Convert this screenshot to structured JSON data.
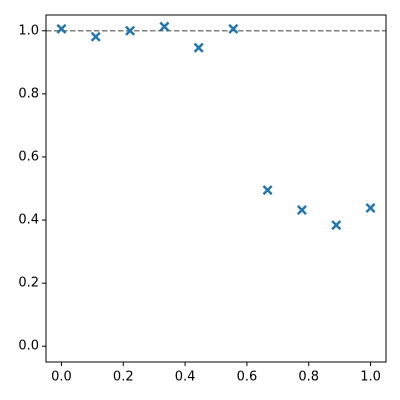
{
  "chart_data": {
    "type": "scatter",
    "x": [
      0.0,
      0.111,
      0.222,
      0.333,
      0.444,
      0.556,
      0.667,
      0.778,
      0.889,
      1.0
    ],
    "series": [
      {
        "color": "#1f77b4",
        "values": [
          1.006,
          0.981,
          1.0,
          1.013,
          0.946,
          1.006,
          0.495,
          0.432,
          0.384,
          0.438
        ]
      }
    ],
    "hline": 1.0,
    "hline_color": "#808080",
    "xlim": [
      -0.05,
      1.05
    ],
    "ylim": [
      -0.05,
      1.05
    ],
    "xticks": [
      {
        "value": 0,
        "label": "0.0"
      },
      {
        "value": 0.2,
        "label": "0.2"
      },
      {
        "value": 0.4,
        "label": "0.4"
      },
      {
        "value": 0.6,
        "label": "0.6"
      },
      {
        "value": 0.8,
        "label": "0.8"
      },
      {
        "value": 1,
        "label": "1.0"
      }
    ],
    "yticks": [
      {
        "value": 0,
        "label": "0.0"
      },
      {
        "value": 0.2,
        "label": "0.2"
      },
      {
        "value": 0.4,
        "label": "0.4"
      },
      {
        "value": 0.6,
        "label": "0.6"
      },
      {
        "value": 0.8,
        "label": "0.8"
      },
      {
        "value": 1,
        "label": "1.0"
      }
    ],
    "grid": false
  }
}
